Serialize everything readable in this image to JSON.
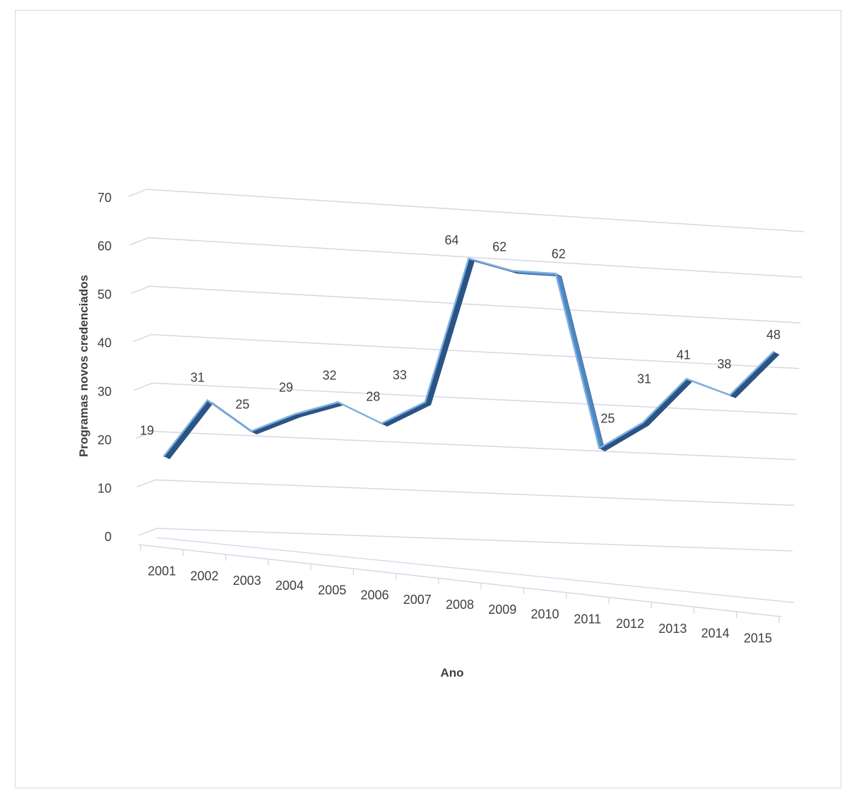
{
  "chart_data": {
    "type": "line",
    "title": "",
    "xlabel": "Ano",
    "ylabel": "Programas novos credenciados",
    "categories": [
      "2001",
      "2002",
      "2003",
      "2004",
      "2005",
      "2006",
      "2007",
      "2008",
      "2009",
      "2010",
      "2011",
      "2012",
      "2013",
      "2014",
      "2015"
    ],
    "values": [
      19,
      31,
      25,
      29,
      32,
      28,
      33,
      64,
      62,
      62,
      25,
      31,
      41,
      38,
      48
    ],
    "data_labels": [
      "19",
      "31",
      "25",
      "29",
      "32",
      "28",
      "33",
      "64",
      "62",
      "62",
      "25",
      "31",
      "41",
      "38",
      "48"
    ],
    "ylim": [
      0,
      70
    ],
    "yticks": [
      0,
      10,
      20,
      30,
      40,
      50,
      60,
      70
    ],
    "ytick_labels": [
      "0",
      "10",
      "20",
      "30",
      "40",
      "50",
      "60",
      "70"
    ],
    "grid": true,
    "legend": "none",
    "style": "3d-line",
    "colors": {
      "line": "#4f87c2",
      "line_dark": "#1f3f66",
      "grid": "#d9d9e8",
      "text": "#404040"
    }
  }
}
